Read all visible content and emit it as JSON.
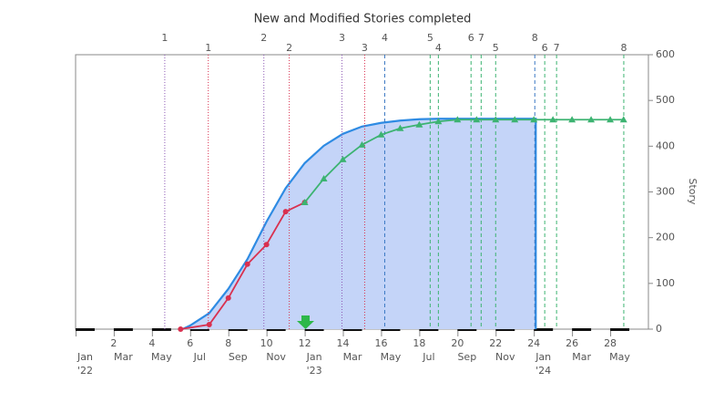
{
  "chart_data": {
    "type": "line",
    "title": "New and Modified Stories completed",
    "y_label": "Story",
    "xlim": [
      0,
      30
    ],
    "ylim": [
      0,
      600
    ],
    "yticks": [
      0,
      100,
      200,
      300,
      400,
      500,
      600
    ],
    "xticks": [
      2,
      4,
      6,
      8,
      10,
      12,
      14,
      16,
      18,
      20,
      22,
      24,
      26,
      28
    ],
    "month_ticks": [
      {
        "value": 0.5,
        "label": "Jan"
      },
      {
        "value": 2.5,
        "label": "Mar"
      },
      {
        "value": 4.5,
        "label": "May"
      },
      {
        "value": 6.5,
        "label": "Jul"
      },
      {
        "value": 8.5,
        "label": "Sep"
      },
      {
        "value": 10.5,
        "label": "Nov"
      },
      {
        "value": 12.5,
        "label": "Jan"
      },
      {
        "value": 14.5,
        "label": "Mar"
      },
      {
        "value": 16.5,
        "label": "May"
      },
      {
        "value": 18.5,
        "label": "Jul"
      },
      {
        "value": 20.5,
        "label": "Sep"
      },
      {
        "value": 22.5,
        "label": "Nov"
      },
      {
        "value": 24.5,
        "label": "Jan"
      },
      {
        "value": 26.5,
        "label": "Mar"
      },
      {
        "value": 28.5,
        "label": "May"
      }
    ],
    "year_ticks": [
      {
        "value": 0.5,
        "label": "'22"
      },
      {
        "value": 12.5,
        "label": "'23"
      },
      {
        "value": 24.5,
        "label": "'24"
      }
    ],
    "area": {
      "color": "#2e8be3",
      "fill": "#c4d4f8",
      "x": [
        5.6,
        6,
        7,
        8,
        9,
        10,
        11,
        12,
        13,
        14,
        15,
        16,
        17,
        18,
        19,
        20,
        21,
        22,
        23,
        24.1
      ],
      "values": [
        0,
        8,
        35,
        88,
        153,
        235,
        308,
        363,
        401,
        427,
        443,
        451,
        456,
        459,
        460,
        460,
        460,
        460,
        460,
        460
      ]
    },
    "series": [
      {
        "color": "#d9304f",
        "marker": "circle",
        "x": [
          5.5,
          7,
          8,
          9,
          10,
          11,
          12
        ],
        "values": [
          0,
          10,
          68,
          142,
          185,
          257,
          277
        ]
      },
      {
        "color": "#3cb371",
        "marker": "triangle",
        "x": [
          12,
          13,
          14,
          15,
          16,
          17,
          18,
          19,
          20,
          21,
          22,
          23,
          24,
          25,
          26,
          27,
          28,
          28.7
        ],
        "values": [
          277,
          329,
          371,
          403,
          425,
          439,
          447,
          454,
          458,
          458,
          458,
          458,
          458,
          458,
          458,
          458,
          458,
          458
        ]
      }
    ],
    "milestones": [
      {
        "labels": [
          "1",
          "2",
          "3",
          "4",
          "5",
          "6",
          "7",
          "8"
        ],
        "x": [
          4.67,
          9.86,
          13.95,
          16.19,
          18.57,
          20.71,
          21.24,
          24.05
        ],
        "colors": [
          "#8e5bb5",
          "#8e5bb5",
          "#8e5bb5",
          "#3a78c2",
          "#3cb371",
          "#3cb371",
          "#3cb371",
          "#3a78c2"
        ],
        "styles": [
          "dotted",
          "dotted",
          "dotted",
          "dashed",
          "dashed",
          "dashed",
          "dashed",
          "dashed"
        ]
      },
      {
        "labels": [
          "1",
          "2",
          "3",
          "4",
          "5",
          "6",
          "7",
          "8"
        ],
        "x": [
          6.95,
          11.19,
          15.14,
          19.0,
          22.0,
          24.57,
          25.19,
          28.71
        ],
        "colors": [
          "#d9304f",
          "#d9304f",
          "#d9304f",
          "#3cb371",
          "#3cb371",
          "#3cb371",
          "#3cb371",
          "#3cb371"
        ],
        "styles": [
          "dotted",
          "dotted",
          "dotted",
          "dashed",
          "dashed",
          "dashed",
          "dashed",
          "dashed"
        ]
      }
    ]
  }
}
